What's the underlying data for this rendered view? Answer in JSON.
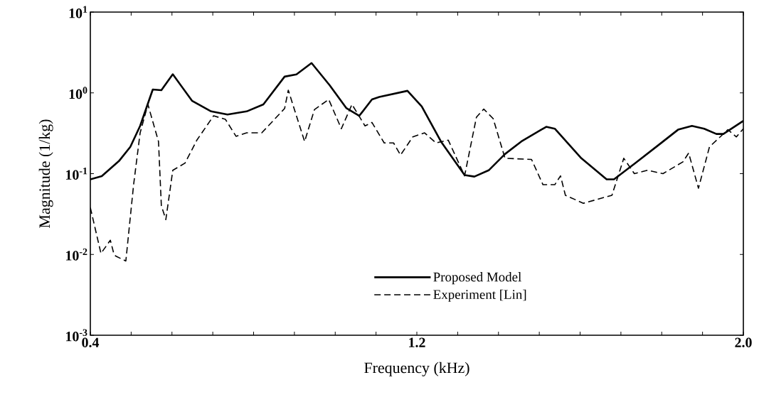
{
  "chart_data": {
    "type": "line",
    "xlabel": "Frequency (kHz)",
    "ylabel": "Magnitude (1/kg)",
    "log": "y",
    "legend": "bottom",
    "xlim": [
      0.4,
      2.0
    ],
    "ylim": [
      0.001,
      10
    ],
    "xticks": [
      {
        "value": 0.4,
        "label": "0.4"
      },
      {
        "value": 0.5,
        "label": null
      },
      {
        "value": 0.6,
        "label": null
      },
      {
        "value": 0.7,
        "label": null
      },
      {
        "value": 0.8,
        "label": null
      },
      {
        "value": 0.9,
        "label": null
      },
      {
        "value": 1.0,
        "label": null
      },
      {
        "value": 1.1,
        "label": null
      },
      {
        "value": 1.2,
        "label": "1.2"
      },
      {
        "value": 1.3,
        "label": null
      },
      {
        "value": 1.4,
        "label": null
      },
      {
        "value": 1.5,
        "label": null
      },
      {
        "value": 1.6,
        "label": null
      },
      {
        "value": 1.7,
        "label": null
      },
      {
        "value": 1.8,
        "label": null
      },
      {
        "value": 1.9,
        "label": null
      },
      {
        "value": 2.0,
        "label": "2.0"
      }
    ],
    "yticks": [
      {
        "value": 0.001,
        "label": "10$^{-3}$"
      },
      {
        "value": 0.01,
        "label": "10$^{-2}$"
      },
      {
        "value": 0.1,
        "label": "10$^{-1}$"
      },
      {
        "value": 1,
        "label": "10$^{0}$"
      },
      {
        "value": 10,
        "label": "10$^{1}$"
      }
    ],
    "series": [
      {
        "name": "Proposed Model",
        "color": "#000000",
        "line_style": "solid",
        "x": [
          0.4,
          0.428,
          0.47,
          0.498,
          0.522,
          0.553,
          0.574,
          0.602,
          0.649,
          0.696,
          0.736,
          0.783,
          0.824,
          0.876,
          0.905,
          0.942,
          0.986,
          1.027,
          1.059,
          1.09,
          1.108,
          1.177,
          1.212,
          1.259,
          1.317,
          1.341,
          1.376,
          1.416,
          1.456,
          1.517,
          1.538,
          1.603,
          1.665,
          1.683,
          1.735,
          1.794,
          1.84,
          1.874,
          1.904,
          1.934,
          1.951,
          2.0
        ],
        "values": [
          0.085,
          0.093,
          0.143,
          0.215,
          0.39,
          1.1,
          1.08,
          1.7,
          0.8,
          0.59,
          0.54,
          0.59,
          0.72,
          1.59,
          1.69,
          2.34,
          1.25,
          0.65,
          0.52,
          0.83,
          0.89,
          1.06,
          0.68,
          0.25,
          0.096,
          0.092,
          0.11,
          0.175,
          0.25,
          0.38,
          0.36,
          0.155,
          0.085,
          0.085,
          0.135,
          0.23,
          0.35,
          0.39,
          0.36,
          0.31,
          0.31,
          0.45
        ]
      },
      {
        "name": "Experiment [Lin]",
        "color": "#000000",
        "line_style": "dashed",
        "x": [
          0.4,
          0.426,
          0.449,
          0.458,
          0.463,
          0.487,
          0.506,
          0.522,
          0.541,
          0.567,
          0.574,
          0.585,
          0.602,
          0.632,
          0.661,
          0.702,
          0.731,
          0.757,
          0.783,
          0.82,
          0.876,
          0.885,
          0.925,
          0.949,
          0.984,
          1.015,
          1.041,
          1.073,
          1.09,
          1.12,
          1.143,
          1.16,
          1.19,
          1.219,
          1.247,
          1.277,
          1.317,
          1.346,
          1.364,
          1.387,
          1.416,
          1.481,
          1.509,
          1.538,
          1.552,
          1.564,
          1.608,
          1.678,
          1.707,
          1.733,
          1.765,
          1.803,
          1.852,
          1.866,
          1.89,
          1.917,
          1.962,
          1.983,
          2.0
        ],
        "values": [
          0.038,
          0.0103,
          0.015,
          0.01,
          0.0095,
          0.0083,
          0.073,
          0.32,
          0.72,
          0.25,
          0.04,
          0.027,
          0.11,
          0.135,
          0.26,
          0.52,
          0.47,
          0.29,
          0.32,
          0.32,
          0.64,
          1.08,
          0.25,
          0.62,
          0.83,
          0.36,
          0.72,
          0.39,
          0.43,
          0.24,
          0.24,
          0.17,
          0.285,
          0.32,
          0.24,
          0.26,
          0.094,
          0.5,
          0.63,
          0.48,
          0.155,
          0.15,
          0.073,
          0.073,
          0.094,
          0.054,
          0.043,
          0.054,
          0.155,
          0.1,
          0.11,
          0.1,
          0.14,
          0.18,
          0.066,
          0.215,
          0.35,
          0.285,
          0.36
        ]
      }
    ]
  }
}
